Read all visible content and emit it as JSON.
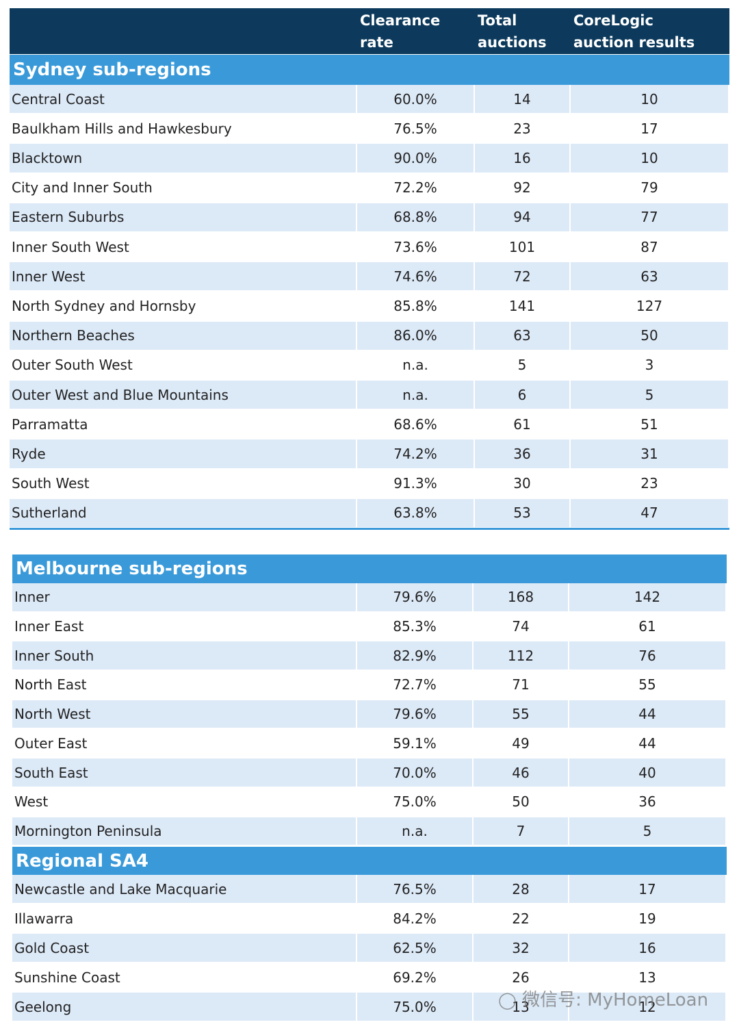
{
  "header": {
    "columns": [
      "Clearance rate",
      "Total auctions",
      "CoreLogic auction results"
    ]
  },
  "sections": [
    {
      "title": "Sydney sub-regions",
      "rows": [
        [
          "Central Coast",
          "60.0%",
          "14",
          "10"
        ],
        [
          "Baulkham Hills and Hawkesbury",
          "76.5%",
          "23",
          "17"
        ],
        [
          "Blacktown",
          "90.0%",
          "16",
          "10"
        ],
        [
          "City and Inner South",
          "72.2%",
          "92",
          "79"
        ],
        [
          "Eastern Suburbs",
          "68.8%",
          "94",
          "77"
        ],
        [
          "Inner South West",
          "73.6%",
          "101",
          "87"
        ],
        [
          "Inner West",
          "74.6%",
          "72",
          "63"
        ],
        [
          "North Sydney and Hornsby",
          "85.8%",
          "141",
          "127"
        ],
        [
          "Northern Beaches",
          "86.0%",
          "63",
          "50"
        ],
        [
          "Outer South West",
          "n.a.",
          "5",
          "3"
        ],
        [
          "Outer West and Blue Mountains",
          "n.a.",
          "6",
          "5"
        ],
        [
          "Parramatta",
          "68.6%",
          "61",
          "51"
        ],
        [
          "Ryde",
          "74.2%",
          "36",
          "31"
        ],
        [
          "South West",
          "91.3%",
          "30",
          "23"
        ],
        [
          "Sutherland",
          "63.8%",
          "53",
          "47"
        ]
      ]
    },
    {
      "title": "Melbourne sub-regions",
      "rows": [
        [
          "Inner",
          "79.6%",
          "168",
          "142"
        ],
        [
          "Inner East",
          "85.3%",
          "74",
          "61"
        ],
        [
          "Inner South",
          "82.9%",
          "112",
          "76"
        ],
        [
          "North East",
          "72.7%",
          "71",
          "55"
        ],
        [
          "North West",
          "79.6%",
          "55",
          "44"
        ],
        [
          "Outer East",
          "59.1%",
          "49",
          "44"
        ],
        [
          "South East",
          "70.0%",
          "46",
          "40"
        ],
        [
          "West",
          "75.0%",
          "50",
          "36"
        ],
        [
          "Mornington Peninsula",
          "n.a.",
          "7",
          "5"
        ]
      ]
    },
    {
      "title": "Regional SA4",
      "rows": [
        [
          "Newcastle and Lake Macquarie",
          "76.5%",
          "28",
          "17"
        ],
        [
          "Illawarra",
          "84.2%",
          "22",
          "19"
        ],
        [
          "Gold Coast",
          "62.5%",
          "32",
          "16"
        ],
        [
          "Sunshine Coast",
          "69.2%",
          "26",
          "13"
        ],
        [
          "Geelong",
          "75.0%",
          "13",
          "12"
        ]
      ]
    }
  ],
  "watermark": "微信号: MyHomeLoan"
}
